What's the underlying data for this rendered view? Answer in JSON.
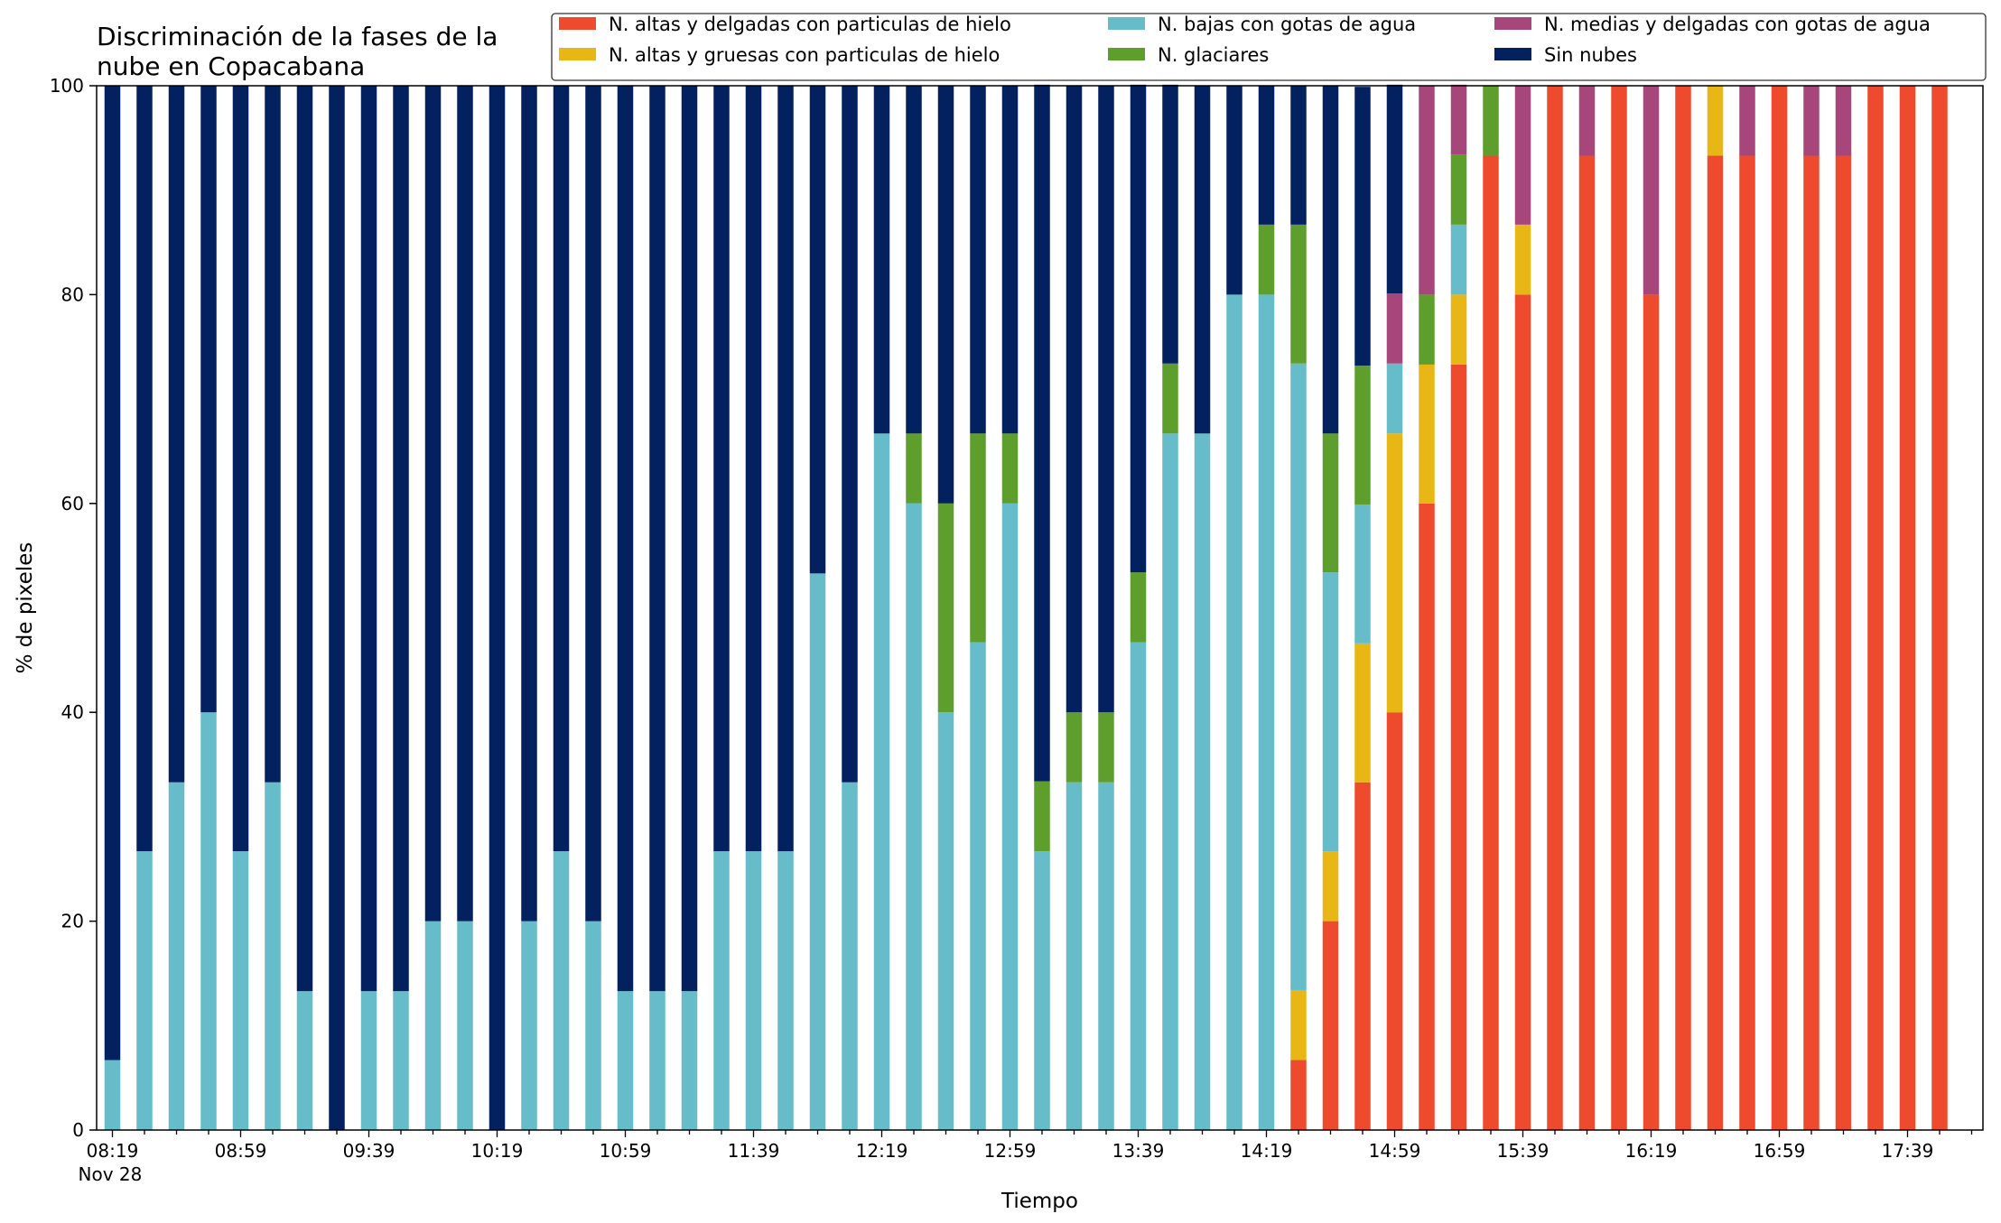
{
  "chart_data": {
    "type": "bar",
    "stacked": true,
    "title": "Discriminación de la fases de la nube en Copacabana",
    "title_lines": [
      "Discriminación de la fases de la",
      "nube en Copacabana"
    ],
    "xlabel": "Tiempo",
    "ylabel": "% de pixeles",
    "ylim": [
      0,
      100
    ],
    "yticks": [
      0,
      20,
      40,
      60,
      80,
      100
    ],
    "xtick_labels": [
      "08:19",
      "08:59",
      "09:39",
      "10:19",
      "10:59",
      "11:39",
      "12:19",
      "12:59",
      "13:39",
      "14:19",
      "14:59",
      "15:39",
      "16:19",
      "16:59",
      "17:39"
    ],
    "xtick_sublabel": "Nov 28",
    "x_start": "08:19",
    "x_interval_minutes": 10,
    "x_count": 58,
    "grid": false,
    "legend_position": "top-right",
    "series": [
      {
        "name": "N. altas y delgadas con particulas de hielo",
        "color": "#EE4A2D",
        "values": [
          0,
          0,
          0,
          0,
          0,
          0,
          0,
          0,
          0,
          0,
          0,
          0,
          0,
          0,
          0,
          0,
          0,
          0,
          0,
          0,
          0,
          0,
          0,
          0,
          0,
          0,
          0,
          0,
          0,
          0,
          0,
          0,
          0,
          0,
          0,
          0,
          0,
          6.7,
          20,
          33.3,
          40,
          60,
          73.3,
          93.3,
          80,
          100,
          93.3,
          100,
          80,
          100,
          93.3,
          93.3,
          100,
          93.3,
          93.3,
          100,
          100,
          100
        ]
      },
      {
        "name": "N. altas y gruesas con particulas de hielo",
        "color": "#E9B715",
        "values": [
          0,
          0,
          0,
          0,
          0,
          0,
          0,
          0,
          0,
          0,
          0,
          0,
          0,
          0,
          0,
          0,
          0,
          0,
          0,
          0,
          0,
          0,
          0,
          0,
          0,
          0,
          0,
          0,
          0,
          0,
          0,
          0,
          0,
          0,
          0,
          0,
          0,
          6.7,
          6.7,
          13.3,
          26.7,
          13.3,
          6.7,
          0,
          6.7,
          0,
          0,
          0,
          0,
          0,
          6.7,
          0,
          0,
          0,
          0,
          0,
          0,
          0
        ]
      },
      {
        "name": "N. bajas con gotas de agua",
        "color": "#66BDC9",
        "values": [
          6.7,
          26.7,
          33.3,
          40,
          26.7,
          33.3,
          13.3,
          0,
          13.3,
          13.3,
          20,
          20,
          0,
          20,
          26.7,
          20,
          13.3,
          13.3,
          13.3,
          26.7,
          26.7,
          26.7,
          53.3,
          33.3,
          66.7,
          60,
          40,
          46.7,
          60,
          26.7,
          33.3,
          33.3,
          46.7,
          66.7,
          66.7,
          80,
          80,
          60,
          26.7,
          13.3,
          6.7,
          0,
          6.7,
          0,
          0,
          0,
          0,
          0,
          0,
          0,
          0,
          0,
          0,
          0,
          0,
          0,
          0,
          0
        ]
      },
      {
        "name": "N. glaciares",
        "color": "#5E9E2C",
        "values": [
          0,
          0,
          0,
          0,
          0,
          0,
          0,
          0,
          0,
          0,
          0,
          0,
          0,
          0,
          0,
          0,
          0,
          0,
          0,
          0,
          0,
          0,
          0,
          0,
          0,
          6.7,
          20,
          20,
          6.7,
          6.7,
          6.7,
          6.7,
          6.7,
          6.7,
          0,
          0,
          6.7,
          13.3,
          13.3,
          13.3,
          0,
          6.7,
          6.7,
          6.7,
          0,
          0,
          0,
          0,
          0,
          0,
          0,
          0,
          0,
          0,
          0,
          0,
          0,
          0
        ]
      },
      {
        "name": "N. medias y delgadas con gotas de agua",
        "color": "#A6467B",
        "values": [
          0,
          0,
          0,
          0,
          0,
          0,
          0,
          0,
          0,
          0,
          0,
          0,
          0,
          0,
          0,
          0,
          0,
          0,
          0,
          0,
          0,
          0,
          0,
          0,
          0,
          0,
          0,
          0,
          0,
          0,
          0,
          0,
          0,
          0,
          0,
          0,
          0,
          0,
          0,
          0,
          6.7,
          20,
          6.7,
          0,
          13.3,
          0,
          6.7,
          0,
          20,
          0,
          0,
          6.7,
          0,
          6.7,
          6.7,
          0,
          0,
          0
        ]
      },
      {
        "name": "Sin nubes",
        "color": "#03215F",
        "values": [
          93.3,
          73.3,
          66.7,
          60,
          73.3,
          66.7,
          86.7,
          100,
          86.7,
          86.7,
          80,
          80,
          100,
          80,
          73.3,
          80,
          86.7,
          86.7,
          86.7,
          73.3,
          73.3,
          73.3,
          46.7,
          66.7,
          33.3,
          33.3,
          40,
          33.3,
          33.3,
          66.7,
          60,
          60,
          46.7,
          26.7,
          33.3,
          20,
          13.3,
          13.3,
          33.3,
          26.7,
          20,
          0,
          0,
          0,
          0,
          0,
          0,
          0,
          0,
          0,
          0,
          0,
          0,
          0,
          0,
          0,
          0,
          0
        ]
      }
    ]
  }
}
